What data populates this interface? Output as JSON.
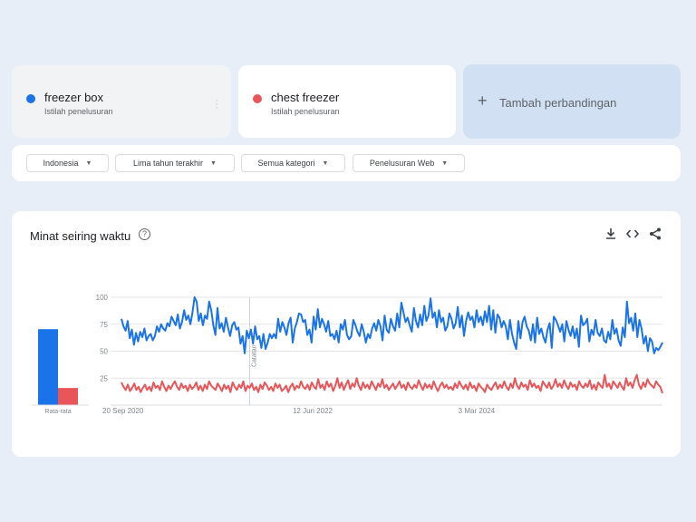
{
  "terms": [
    {
      "name": "freezer box",
      "subtitle": "Istilah penelusuran",
      "color": "#1a73e8"
    },
    {
      "name": "chest freezer",
      "subtitle": "Istilah penelusuran",
      "color": "#e8565a"
    }
  ],
  "add_comparison": {
    "label": "Tambah perbandingan"
  },
  "filters": {
    "region": "Indonesia",
    "time": "Lima tahun terakhir",
    "category": "Semua kategori",
    "search_type": "Penelusuran Web"
  },
  "interest": {
    "title": "Minat seiring waktu",
    "help": "?",
    "marker_label": "Catatan"
  },
  "chart_data": {
    "type": "line",
    "title": "Minat seiring waktu",
    "ylim": [
      0,
      100
    ],
    "yticks": [
      25,
      50,
      75,
      100
    ],
    "x_tick_labels": [
      "20 Sep 2020",
      "12 Jun 2022",
      "3 Mar 2024"
    ],
    "grid": true,
    "averages": {
      "label": "Rata-rata",
      "values": [
        {
          "name": "freezer box",
          "value": 71
        },
        {
          "name": "chest freezer",
          "value": 16
        }
      ]
    },
    "series": [
      {
        "name": "freezer box",
        "color": "#1a73e8",
        "values": [
          80,
          73,
          69,
          78,
          62,
          70,
          56,
          67,
          59,
          68,
          63,
          71,
          60,
          64,
          66,
          60,
          64,
          73,
          68,
          75,
          71,
          69,
          76,
          73,
          82,
          78,
          74,
          84,
          71,
          77,
          88,
          79,
          83,
          75,
          86,
          100,
          96,
          78,
          85,
          74,
          83,
          80,
          96,
          88,
          74,
          65,
          90,
          71,
          76,
          68,
          81,
          72,
          64,
          74,
          77,
          70,
          72,
          57,
          64,
          48,
          69,
          62,
          70,
          57,
          73,
          61,
          64,
          53,
          66,
          52,
          58,
          66,
          62,
          66,
          62,
          80,
          68,
          77,
          72,
          65,
          76,
          81,
          58,
          71,
          77,
          85,
          84,
          77,
          79,
          65,
          70,
          58,
          82,
          70,
          89,
          72,
          80,
          75,
          68,
          78,
          64,
          66,
          61,
          69,
          58,
          75,
          70,
          79,
          65,
          61,
          64,
          79,
          74,
          68,
          64,
          75,
          68,
          58,
          66,
          62,
          71,
          76,
          69,
          79,
          73,
          60,
          83,
          70,
          67,
          80,
          73,
          69,
          85,
          72,
          95,
          86,
          77,
          81,
          74,
          68,
          90,
          78,
          72,
          84,
          74,
          92,
          78,
          83,
          99,
          81,
          86,
          72,
          88,
          77,
          81,
          69,
          73,
          85,
          80,
          71,
          76,
          91,
          72,
          83,
          64,
          78,
          86,
          79,
          82,
          72,
          88,
          77,
          82,
          74,
          87,
          77,
          92,
          70,
          88,
          67,
          84,
          81,
          72,
          78,
          73,
          61,
          79,
          66,
          58,
          52,
          78,
          62,
          77,
          82,
          73,
          69,
          60,
          75,
          58,
          81,
          66,
          71,
          63,
          58,
          70,
          76,
          53,
          82,
          79,
          74,
          68,
          75,
          59,
          78,
          70,
          64,
          73,
          62,
          71,
          54,
          83,
          74,
          76,
          80,
          59,
          70,
          65,
          79,
          67,
          64,
          71,
          60,
          58,
          68,
          61,
          79,
          66,
          71,
          60,
          55,
          72,
          63,
          96,
          76,
          81,
          69,
          85,
          63,
          79,
          71,
          57,
          64,
          50,
          62,
          59,
          48,
          53,
          51,
          54,
          58
        ]
      },
      {
        "name": "chest freezer",
        "color": "#e8565a",
        "values": [
          21,
          17,
          14,
          19,
          13,
          16,
          20,
          14,
          17,
          12,
          16,
          19,
          14,
          17,
          13,
          21,
          16,
          18,
          14,
          22,
          17,
          13,
          18,
          15,
          19,
          22,
          17,
          14,
          20,
          16,
          18,
          13,
          19,
          15,
          17,
          21,
          14,
          18,
          13,
          19,
          15,
          22,
          18,
          16,
          14,
          20,
          17,
          13,
          19,
          15,
          18,
          12,
          21,
          17,
          14,
          19,
          16,
          22,
          13,
          18,
          16,
          20,
          14,
          17,
          12,
          19,
          15,
          21,
          18,
          14,
          17,
          13,
          20,
          16,
          19,
          13,
          15,
          18,
          12,
          17,
          20,
          14,
          18,
          16,
          22,
          17,
          15,
          19,
          14,
          21,
          17,
          15,
          24,
          16,
          19,
          14,
          22,
          17,
          20,
          13,
          18,
          25,
          16,
          21,
          14,
          19,
          23,
          15,
          20,
          17,
          25,
          18,
          14,
          21,
          16,
          19,
          15,
          22,
          18,
          14,
          20,
          17,
          24,
          16,
          19,
          14,
          17,
          20,
          15,
          18,
          22,
          16,
          19,
          14,
          21,
          17,
          15,
          19,
          16,
          23,
          18,
          14,
          20,
          16,
          19,
          15,
          22,
          17,
          13,
          18,
          21,
          16,
          19,
          15,
          17,
          14,
          20,
          16,
          22,
          18,
          15,
          19,
          14,
          21,
          16,
          18,
          13,
          20,
          17,
          15,
          12,
          19,
          16,
          14,
          18,
          21,
          15,
          19,
          16,
          22,
          17,
          14,
          20,
          16,
          25,
          18,
          15,
          21,
          17,
          19,
          14,
          23,
          17,
          20,
          16,
          18,
          13,
          22,
          19,
          16,
          21,
          15,
          18,
          24,
          17,
          20,
          16,
          23,
          18,
          15,
          21,
          17,
          19,
          14,
          22,
          18,
          16,
          20,
          17,
          23,
          15,
          19,
          14,
          21,
          18,
          16,
          28,
          17,
          20,
          15,
          22,
          19,
          16,
          21,
          17,
          14,
          25,
          18,
          21,
          16,
          23,
          28,
          19,
          15,
          21,
          17,
          24,
          20,
          18,
          16,
          22,
          19,
          17,
          11
        ]
      }
    ]
  }
}
